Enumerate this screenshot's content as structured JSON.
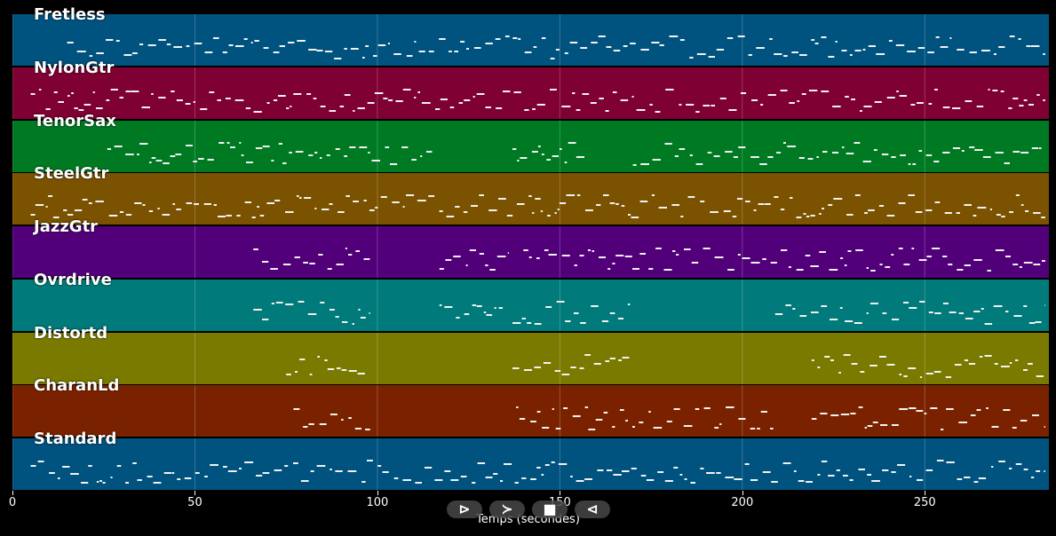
{
  "chart_data": {
    "type": "piano-roll",
    "xlabel": "Temps (secondes)",
    "xlim": [
      0,
      284
    ],
    "xticks": [
      0,
      50,
      100,
      150,
      200,
      250
    ],
    "grid": true,
    "tracks": [
      {
        "name": "Fretless",
        "color": "#00527f",
        "active": [
          [
            15,
            283
          ]
        ]
      },
      {
        "name": "NylonGtr",
        "color": "#7f0033",
        "active": [
          [
            5,
            283
          ]
        ]
      },
      {
        "name": "TenorSax",
        "color": "#007a22",
        "active": [
          [
            26,
            115
          ],
          [
            137,
            157
          ],
          [
            170,
            283
          ]
        ]
      },
      {
        "name": "SteelGtr",
        "color": "#7a5200",
        "active": [
          [
            5,
            283
          ]
        ]
      },
      {
        "name": "JazzGtr",
        "color": "#52007a",
        "active": [
          [
            66,
            98
          ],
          [
            117,
            136
          ],
          [
            140,
            283
          ]
        ]
      },
      {
        "name": "Ovrdrive",
        "color": "#007a7a",
        "active": [
          [
            66,
            98
          ],
          [
            117,
            135
          ],
          [
            137,
            170
          ],
          [
            209,
            283
          ]
        ]
      },
      {
        "name": "Distortd",
        "color": "#7a7a00",
        "active": [
          [
            75,
            98
          ],
          [
            137,
            169
          ],
          [
            219,
            283
          ]
        ]
      },
      {
        "name": "CharanLd",
        "color": "#7a2200",
        "active": [
          [
            77,
            98
          ],
          [
            138,
            209
          ],
          [
            219,
            283
          ]
        ]
      },
      {
        "name": "Standard",
        "color": "#00527f",
        "active": [
          [
            5,
            283
          ]
        ]
      }
    ]
  },
  "controls": {
    "play": "⊳",
    "forward": "≻",
    "stop": "■",
    "back": "⊲"
  }
}
